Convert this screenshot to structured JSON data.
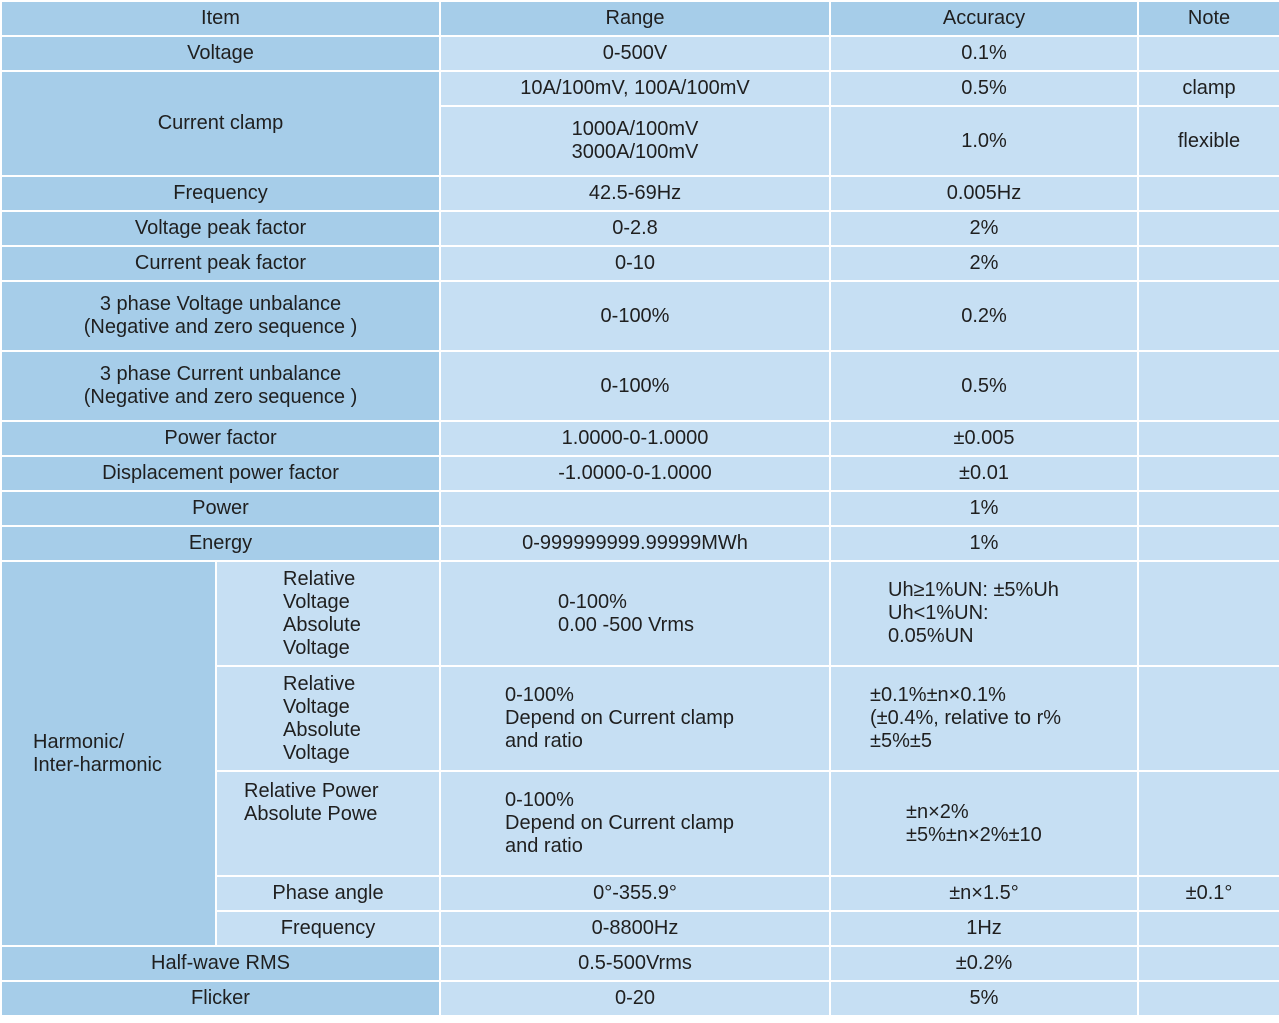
{
  "headers": {
    "item": "Item",
    "range": "Range",
    "accuracy": "Accuracy",
    "note": "Note"
  },
  "rows": {
    "voltage": {
      "item": "Voltage",
      "range": "0-500V",
      "accuracy": "0.1%",
      "note": ""
    },
    "current_clamp": {
      "item": "Current clamp",
      "clamp": {
        "range": "10A/100mV, 100A/100mV",
        "accuracy": "0.5%",
        "note": "clamp"
      },
      "flexible": {
        "range": "1000A/100mV\n3000A/100mV",
        "accuracy": "1.0%",
        "note": "flexible"
      }
    },
    "frequency": {
      "item": "Frequency",
      "range": "42.5-69Hz",
      "accuracy": "0.005Hz",
      "note": ""
    },
    "voltage_peak_factor": {
      "item": "Voltage peak factor",
      "range": "0-2.8",
      "accuracy": "2%",
      "note": ""
    },
    "current_peak_factor": {
      "item": "Current peak factor",
      "range": "0-10",
      "accuracy": "2%",
      "note": ""
    },
    "voltage_unbalance": {
      "item": "3 phase Voltage unbalance\n(Negative and zero sequence )",
      "range": "0-100%",
      "accuracy": "0.2%",
      "note": ""
    },
    "current_unbalance": {
      "item": "3 phase Current  unbalance\n(Negative and zero sequence )",
      "range": "0-100%",
      "accuracy": "0.5%",
      "note": ""
    },
    "power_factor": {
      "item": "Power factor",
      "range": "1.0000-0-1.0000",
      "accuracy": "±0.005",
      "note": ""
    },
    "displacement_power_factor": {
      "item": "Displacement power factor",
      "range": "-1.0000-0-1.0000",
      "accuracy": "±0.01",
      "note": ""
    },
    "power": {
      "item": "Power",
      "range": "",
      "accuracy": "1%",
      "note": ""
    },
    "energy": {
      "item": "Energy",
      "range": "0-999999999.99999MWh",
      "accuracy": "1%",
      "note": ""
    },
    "harmonic": {
      "item": "Harmonic/\nInter-harmonic",
      "sub1": {
        "sub": "Relative\nVoltage\nAbsolute\nVoltage",
        "range": "0-100%\n0.00 -500 Vrms",
        "accuracy": "Uh≥1%UN: ±5%Uh\nUh<1%UN:\n0.05%UN",
        "note": ""
      },
      "sub2": {
        "sub": "Relative\nVoltage\nAbsolute\nVoltage",
        "range": "0-100%\nDepend on Current clamp\nand ratio",
        "accuracy": "±0.1%±n×0.1%\n(±0.4%, relative to r%\n±5%±5",
        "note": ""
      },
      "sub3": {
        "sub": "Relative Power\nAbsolute Powe",
        "range": "0-100%\nDepend on Current clamp\nand ratio",
        "accuracy": "±n×2%\n±5%±n×2%±10",
        "note": ""
      },
      "sub4": {
        "sub": "Phase angle",
        "range": "0°-355.9°",
        "accuracy": "±n×1.5°",
        "note": "±0.1°"
      },
      "sub5": {
        "sub": "Frequency",
        "range": "0-8800Hz",
        "accuracy": "1Hz",
        "note": ""
      }
    },
    "half_wave_rms": {
      "item": "Half-wave RMS",
      "range": "0.5-500Vrms",
      "accuracy": "±0.2%",
      "note": ""
    },
    "flicker": {
      "item": "Flicker",
      "range": "0-20",
      "accuracy": "5%",
      "note": ""
    }
  },
  "colors": {
    "header_bg": "#a6cde9",
    "item_bg": "#a6cde9",
    "value_bg": "#c6dff3",
    "grid": "#ffffff"
  }
}
